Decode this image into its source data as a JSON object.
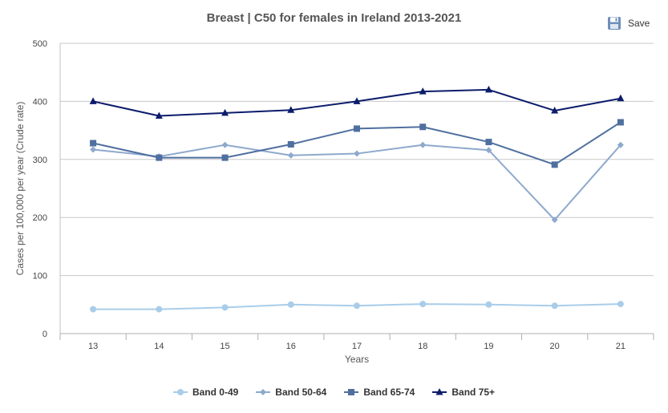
{
  "page": {
    "title": "Breast | C50 for females in Ireland 2013-2021",
    "save_label": "Save",
    "save_icon": "floppy-disk-icon"
  },
  "chart_data": {
    "type": "line",
    "title": "Breast | C50 for females in Ireland 2013-2021",
    "xlabel": "Years",
    "ylabel": "Cases per 100,000 per year (Crude rate)",
    "categories": [
      "13",
      "14",
      "15",
      "16",
      "17",
      "18",
      "19",
      "20",
      "21"
    ],
    "ylim": [
      0,
      500
    ],
    "yticks": [
      "0",
      "100",
      "200",
      "300",
      "400",
      "500"
    ],
    "grid": "horizontal",
    "legend_position": "bottom",
    "series": [
      {
        "name": "Band 0-49",
        "color": "#a9cde9",
        "marker": "circle",
        "values": [
          42,
          42,
          45,
          50,
          48,
          51,
          50,
          48,
          51
        ]
      },
      {
        "name": "Band 50-64",
        "color": "#8ea9cd",
        "marker": "diamond",
        "values": [
          317,
          305,
          325,
          307,
          310,
          325,
          316,
          196,
          325
        ]
      },
      {
        "name": "Band 65-74",
        "color": "#4f6f9f",
        "marker": "square",
        "values": [
          328,
          303,
          303,
          326,
          353,
          356,
          330,
          291,
          364
        ]
      },
      {
        "name": "Band 75+",
        "color": "#0c1c6b",
        "marker": "triangle",
        "values": [
          400,
          375,
          380,
          385,
          400,
          417,
          420,
          384,
          405
        ]
      }
    ]
  }
}
